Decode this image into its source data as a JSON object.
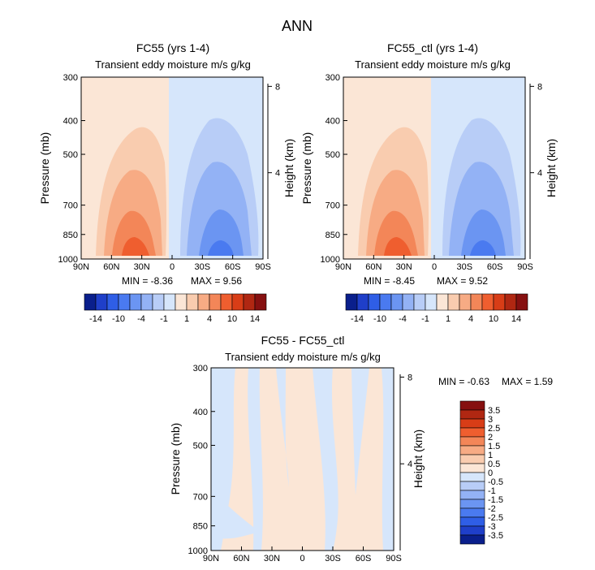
{
  "page_title": "ANN",
  "chart_data": [
    {
      "type": "heatmap",
      "title": "FC55 (yrs 1-4)",
      "subtitle": "Transient eddy moisture m/s g/kg",
      "xlabel": "",
      "ylabel": "Pressure (mb)",
      "y2label": "Height (km)",
      "x_ticks": [
        "90N",
        "60N",
        "30N",
        "0",
        "30S",
        "60S",
        "90S"
      ],
      "y_ticks": [
        "300",
        "400",
        "500",
        "700",
        "850",
        "1000"
      ],
      "y2_ticks": [
        "8",
        "4"
      ],
      "min_text": "MIN = -8.36",
      "max_text": "MAX = 9.56",
      "min": -8.36,
      "max": 9.56,
      "colorbar_labels": [
        "-14",
        "-10",
        "-4",
        "-1",
        "1",
        "4",
        "10",
        "14"
      ]
    },
    {
      "type": "heatmap",
      "title": "FC55_ctl (yrs 1-4)",
      "subtitle": "Transient eddy moisture m/s g/kg",
      "xlabel": "",
      "ylabel": "Pressure (mb)",
      "y2label": "Height (km)",
      "x_ticks": [
        "90N",
        "60N",
        "30N",
        "0",
        "30S",
        "60S",
        "90S"
      ],
      "y_ticks": [
        "300",
        "400",
        "500",
        "700",
        "850",
        "1000"
      ],
      "y2_ticks": [
        "8",
        "4"
      ],
      "min_text": "MIN = -8.45",
      "max_text": "MAX = 9.52",
      "min": -8.45,
      "max": 9.52,
      "colorbar_labels": [
        "-14",
        "-10",
        "-4",
        "-1",
        "1",
        "4",
        "10",
        "14"
      ]
    },
    {
      "type": "heatmap",
      "title": "FC55 - FC55_ctl",
      "subtitle": "Transient eddy moisture m/s g/kg",
      "xlabel": "",
      "ylabel": "Pressure (mb)",
      "y2label": "Height (km)",
      "x_ticks": [
        "90N",
        "60N",
        "30N",
        "0",
        "30S",
        "60S",
        "90S"
      ],
      "y_ticks": [
        "300",
        "400",
        "500",
        "700",
        "850",
        "1000"
      ],
      "y2_ticks": [
        "8",
        "4"
      ],
      "min_text": "MIN = -0.63",
      "max_text": "MAX = 1.59",
      "min": -0.63,
      "max": 1.59,
      "colorbar_labels": [
        "3.5",
        "3",
        "2.5",
        "2",
        "1.5",
        "1",
        "0.5",
        "0",
        "-0.5",
        "-1",
        "-1.5",
        "-2",
        "-2.5",
        "-3",
        "-3.5"
      ]
    }
  ],
  "colors": {
    "diverging": [
      "#0a1f8c",
      "#1f3fc9",
      "#2f5ee6",
      "#4a7af0",
      "#6b95f2",
      "#93b2f5",
      "#b8cdf7",
      "#d6e6fb",
      "#fbe6d6",
      "#f9ccaf",
      "#f7ab84",
      "#f38658",
      "#ef5e2f",
      "#d83d17",
      "#b02712",
      "#861010"
    ],
    "diff_scale": [
      "#861010",
      "#b02712",
      "#d83d17",
      "#ef5e2f",
      "#f38658",
      "#f7ab84",
      "#f9ccaf",
      "#fbe6d6",
      "#d6e6fb",
      "#b8cdf7",
      "#93b2f5",
      "#6b95f2",
      "#4a7af0",
      "#2f5ee6",
      "#1f3fc9",
      "#0a1f8c"
    ]
  }
}
